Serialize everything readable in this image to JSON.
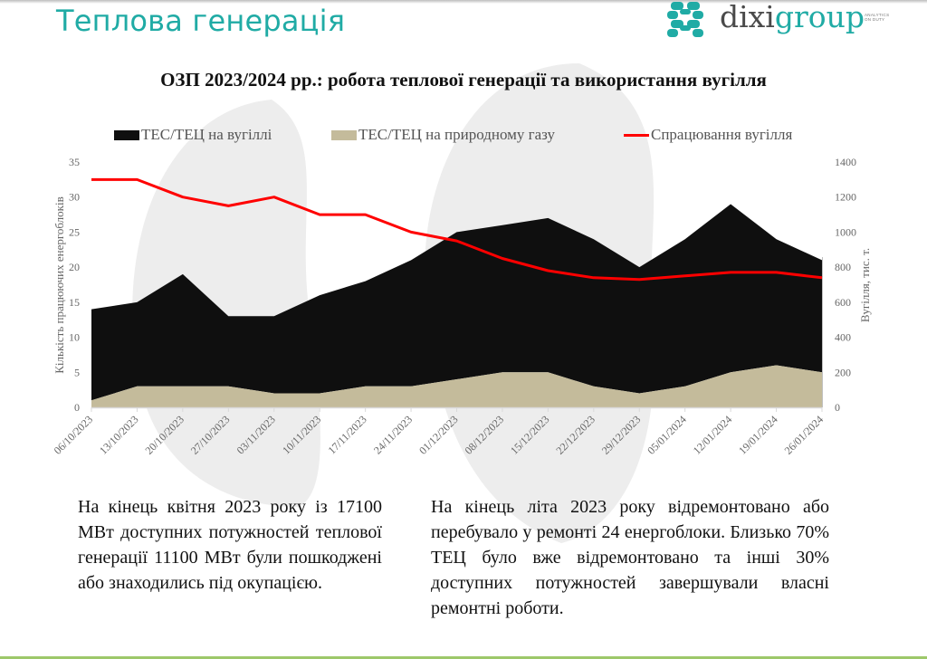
{
  "slide": {
    "title": "Теплова генерація",
    "logo": {
      "part1": "dixi",
      "part2": "group",
      "tagline_1": "ANALYTICS",
      "tagline_2": "ON DUTY"
    }
  },
  "colors": {
    "title": "#20aba5",
    "coal_area": "#0f0f0f",
    "gas_area": "#c4bb9b",
    "coal_line": "#ff0000",
    "bottom_bar": "#9dc86a"
  },
  "chart_data": {
    "type": "area",
    "title": "ОЗП 2023/2024 рр.: робота теплової генерації та використання вугілля",
    "categories": [
      "06/10/2023",
      "13/10/2023",
      "20/10/2023",
      "27/10/2023",
      "03/11/2023",
      "10/11/2023",
      "17/11/2023",
      "24/11/2023",
      "01/12/2023",
      "08/12/2023",
      "15/12/2023",
      "22/12/2023",
      "29/12/2023",
      "05/01/2024",
      "12/01/2024",
      "19/01/2024",
      "26/01/2024"
    ],
    "stacked": true,
    "series": [
      {
        "name": "ТЕС/ТЕЦ на природному газу",
        "kind": "area",
        "axis": "left",
        "values": [
          1,
          3,
          3,
          3,
          2,
          2,
          3,
          3,
          4,
          5,
          5,
          3,
          2,
          3,
          5,
          6,
          5
        ]
      },
      {
        "name": "ТЕС/ТЕЦ на вугіллі",
        "kind": "area",
        "axis": "left",
        "values": [
          13,
          12,
          16,
          10,
          11,
          14,
          15,
          18,
          21,
          21,
          22,
          21,
          18,
          21,
          24,
          18,
          16
        ]
      },
      {
        "name": "Спрацювання вугілля",
        "kind": "line",
        "axis": "right",
        "values": [
          1300,
          1300,
          1200,
          1150,
          1200,
          1100,
          1100,
          1000,
          950,
          850,
          780,
          740,
          730,
          750,
          770,
          770,
          740
        ]
      }
    ],
    "legend_order": [
      "ТЕС/ТЕЦ на вугіллі",
      "ТЕС/ТЕЦ на природному газу",
      "Спрацювання вугілля"
    ],
    "legend_position": "top",
    "ylabel": "Кількість працюючих енергоблоків",
    "ylabel_right": "Вугілля, тис. т.",
    "ylim": [
      0,
      35
    ],
    "yticks": [
      "0",
      "5",
      "10",
      "15",
      "20",
      "25",
      "30",
      "35"
    ],
    "ylim_right": [
      0,
      1400
    ],
    "yticks_right": [
      "0",
      "200",
      "400",
      "600",
      "800",
      "1000",
      "1200",
      "1400"
    ],
    "grid": false
  },
  "text": {
    "para1": "На кінець квітня 2023 року із 17100 МВт доступних потужностей теплової генерації 11100 МВт були пошкоджені або знаходились під окупацією.",
    "para2": "На кінець літа 2023 року відремонтовано або перебувало у ремонті 24 енергоблоки. Близько 70% ТЕЦ було вже відремонтовано та інші 30% доступних потужностей завершували власні ремонтні роботи."
  }
}
